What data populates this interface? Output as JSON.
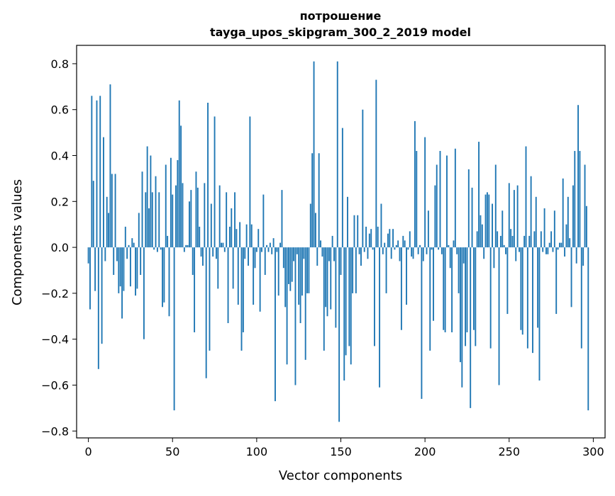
{
  "chart_data": {
    "type": "bar",
    "title_line1": "потрошение",
    "title_line2": "tayga_upos_skipgram_300_2_2019 model",
    "xlabel": "Vector components",
    "ylabel": "Components values",
    "xlim": [
      -7,
      307
    ],
    "ylim": [
      -0.83,
      0.88
    ],
    "xticks": [
      0,
      50,
      100,
      150,
      200,
      250,
      300
    ],
    "xtick_labels": [
      "0",
      "50",
      "100",
      "150",
      "200",
      "250",
      "300"
    ],
    "yticks": [
      -0.8,
      -0.6,
      -0.4,
      -0.2,
      0.0,
      0.2,
      0.4,
      0.6,
      0.8
    ],
    "ytick_labels": [
      "−0.8",
      "−0.6",
      "−0.4",
      "−0.2",
      "0.0",
      "0.2",
      "0.4",
      "0.6",
      "0.8"
    ],
    "grid": false,
    "bar_color": "#1f77b4",
    "values": [
      -0.07,
      -0.27,
      0.66,
      0.29,
      -0.19,
      0.64,
      -0.53,
      0.66,
      -0.42,
      0.48,
      -0.06,
      0.22,
      0.15,
      0.71,
      0.32,
      -0.12,
      0.32,
      -0.06,
      -0.2,
      -0.17,
      -0.31,
      -0.19,
      0.09,
      -0.05,
      0.01,
      -0.17,
      0.04,
      0.02,
      -0.21,
      -0.18,
      0.15,
      -0.12,
      0.33,
      -0.4,
      0.24,
      0.44,
      0.17,
      0.4,
      0.24,
      -0.01,
      0.31,
      -0.02,
      0.24,
      -0.01,
      -0.26,
      -0.24,
      0.36,
      0.05,
      -0.3,
      0.39,
      0.23,
      -0.71,
      0.27,
      0.38,
      0.64,
      0.53,
      0.28,
      -0.02,
      0.01,
      0.01,
      0.2,
      0.25,
      -0.12,
      -0.37,
      0.33,
      0.26,
      0.09,
      -0.04,
      -0.08,
      0.28,
      -0.57,
      0.63,
      -0.45,
      0.19,
      -0.04,
      0.57,
      -0.05,
      -0.18,
      0.27,
      0.02,
      0.02,
      -0.02,
      0.24,
      -0.33,
      0.09,
      0.17,
      -0.18,
      0.24,
      0.08,
      -0.25,
      0.11,
      -0.45,
      -0.37,
      -0.05,
      0.1,
      -0.08,
      0.57,
      0.1,
      -0.25,
      -0.09,
      -0.02,
      0.08,
      -0.28,
      -0.02,
      0.23,
      -0.12,
      0.01,
      -0.02,
      0.02,
      -0.03,
      0.04,
      -0.67,
      -0.02,
      -0.21,
      0.02,
      0.25,
      -0.09,
      -0.26,
      -0.51,
      -0.16,
      -0.19,
      -0.15,
      -0.06,
      -0.6,
      -0.03,
      -0.25,
      -0.33,
      -0.21,
      -0.05,
      -0.49,
      -0.2,
      -0.2,
      0.19,
      0.41,
      0.81,
      0.15,
      -0.08,
      0.41,
      0.03,
      -0.04,
      -0.45,
      -0.26,
      -0.3,
      -0.06,
      -0.27,
      0.05,
      -0.06,
      -0.35,
      0.81,
      -0.76,
      -0.12,
      0.52,
      -0.58,
      -0.47,
      0.22,
      -0.43,
      -0.51,
      -0.2,
      0.14,
      -0.2,
      0.14,
      -0.03,
      -0.08,
      0.6,
      -0.02,
      0.09,
      -0.05,
      0.06,
      0.08,
      -0.01,
      -0.43,
      0.73,
      0.09,
      -0.61,
      0.19,
      -0.03,
      0.02,
      -0.2,
      0.06,
      0.08,
      -0.05,
      0.08,
      -0.01,
      0.01,
      0.03,
      -0.06,
      -0.36,
      0.05,
      0.03,
      -0.25,
      -0.01,
      0.07,
      -0.04,
      -0.05,
      0.55,
      0.42,
      -0.03,
      0.01,
      -0.66,
      -0.06,
      0.48,
      -0.03,
      0.16,
      -0.45,
      -0.01,
      -0.32,
      0.27,
      0.36,
      -0.01,
      0.42,
      -0.03,
      -0.36,
      -0.37,
      0.4,
      0.01,
      -0.09,
      -0.37,
      0.03,
      0.43,
      -0.03,
      -0.2,
      -0.5,
      -0.61,
      -0.07,
      -0.43,
      -0.37,
      0.34,
      -0.7,
      0.26,
      -0.36,
      -0.43,
      0.07,
      0.46,
      0.14,
      0.1,
      -0.05,
      0.23,
      0.24,
      0.23,
      -0.44,
      0.19,
      -0.09,
      0.36,
      0.07,
      -0.6,
      0.05,
      0.16,
      0.01,
      -0.03,
      -0.29,
      0.28,
      0.08,
      0.05,
      0.25,
      -0.06,
      0.27,
      -0.02,
      -0.36,
      -0.38,
      0.05,
      0.44,
      -0.44,
      0.05,
      0.31,
      -0.46,
      0.07,
      0.22,
      -0.35,
      -0.58,
      0.07,
      -0.02,
      0.17,
      -0.03,
      -0.03,
      0.02,
      0.07,
      -0.02,
      0.16,
      -0.29,
      -0.01,
      0.02,
      0.02,
      0.3,
      -0.04,
      0.1,
      0.22,
      0.04,
      -0.26,
      0.27,
      0.42,
      -0.07,
      0.62,
      0.42,
      -0.44,
      -0.08,
      0.36,
      0.18,
      -0.71
    ]
  }
}
